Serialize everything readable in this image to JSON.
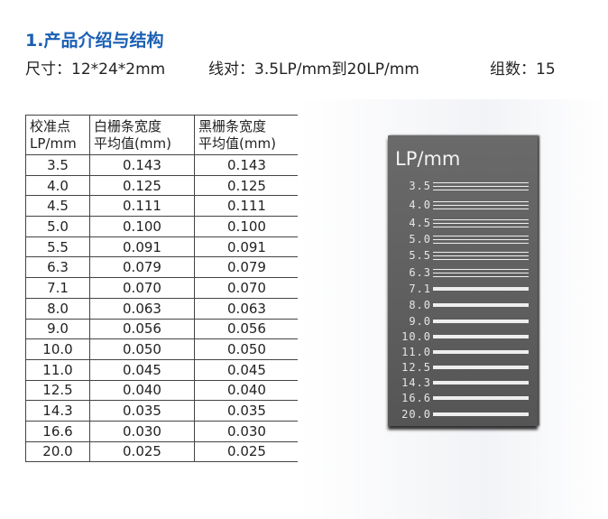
{
  "heading": "1.产品介绍与结构",
  "specs": {
    "size": "尺寸：12*24*2mm",
    "line_pairs": "线对：3.5LP/mm到20LP/mm",
    "groups": "组数：15"
  },
  "table": {
    "headers": [
      [
        "校准点",
        "LP/mm"
      ],
      [
        "白栅条宽度",
        "平均值(mm)"
      ],
      [
        "黑栅条宽度",
        "平均值(mm)"
      ]
    ],
    "rows": [
      [
        "3.5",
        "0.143",
        "0.143"
      ],
      [
        "4.0",
        "0.125",
        "0.125"
      ],
      [
        "4.5",
        "0.111",
        "0.111"
      ],
      [
        "5.0",
        "0.100",
        "0.100"
      ],
      [
        "5.5",
        "0.091",
        "0.091"
      ],
      [
        "6.3",
        "0.079",
        "0.079"
      ],
      [
        "7.1",
        "0.070",
        "0.070"
      ],
      [
        "8.0",
        "0.063",
        "0.063"
      ],
      [
        "9.0",
        "0.056",
        "0.056"
      ],
      [
        "10.0",
        "0.050",
        "0.050"
      ],
      [
        "11.0",
        "0.045",
        "0.045"
      ],
      [
        "12.5",
        "0.040",
        "0.040"
      ],
      [
        "14.3",
        "0.035",
        "0.035"
      ],
      [
        "16.6",
        "0.030",
        "0.030"
      ],
      [
        "20.0",
        "0.025",
        "0.025"
      ]
    ]
  },
  "plate": {
    "title": "LP/mm",
    "labels": [
      "3.5",
      "4.0",
      "4.5",
      "5.0",
      "5.5",
      "6.3",
      "7.1",
      "8.0",
      "9.0",
      "10.0",
      "11.0",
      "12.5",
      "14.3",
      "16.6",
      "20.0"
    ]
  },
  "colors": {
    "heading": "#1a5fb4"
  }
}
